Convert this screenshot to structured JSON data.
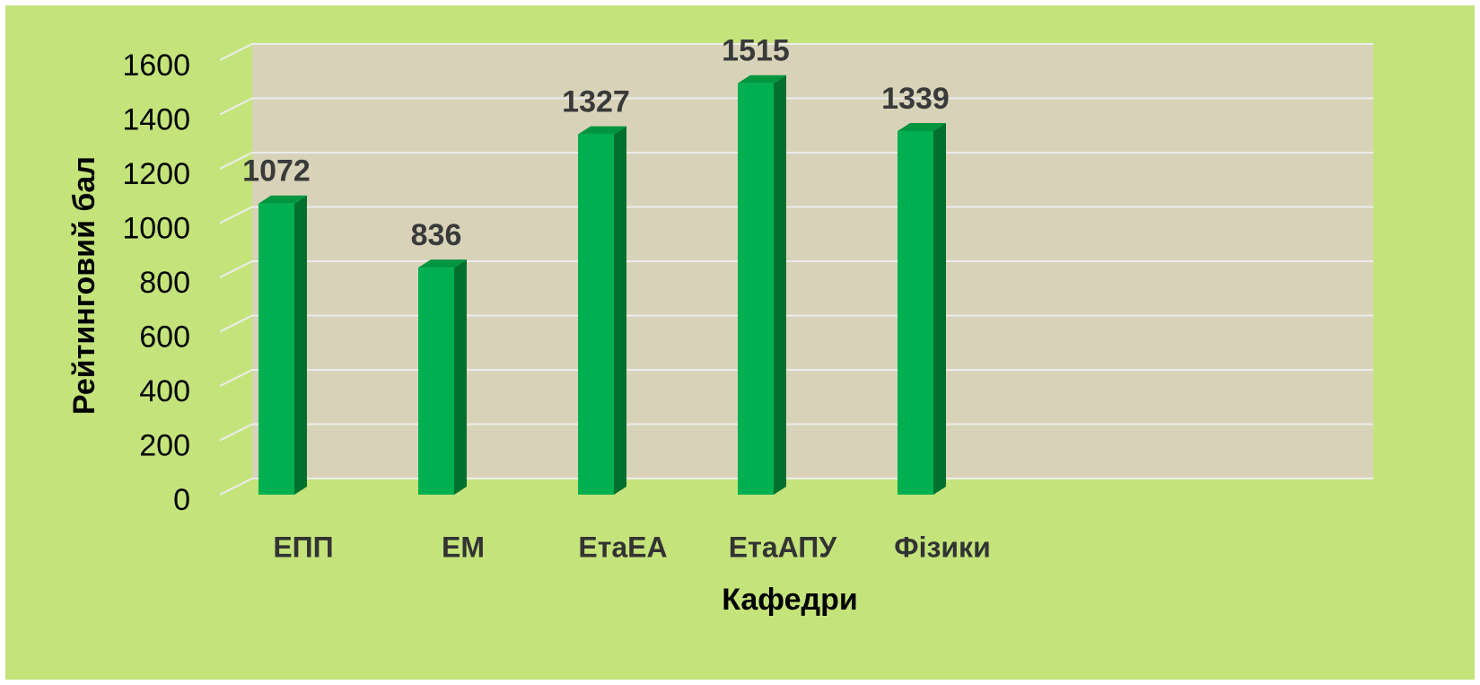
{
  "chart_data": {
    "type": "bar",
    "x_label": "Кафедри",
    "y_label": "Рейтинговий бал",
    "categories": [
      "ЕПП",
      "ЕМ",
      "ЕтаЕА",
      "ЕтаАПУ",
      "Фізики"
    ],
    "values": [
      1072,
      836,
      1327,
      1515,
      1339
    ],
    "color": "#00b050",
    "ylim": [
      0,
      1600
    ],
    "yticks": [
      0,
      200,
      400,
      600,
      800,
      1000,
      1200,
      1400,
      1600
    ],
    "grid": true
  }
}
